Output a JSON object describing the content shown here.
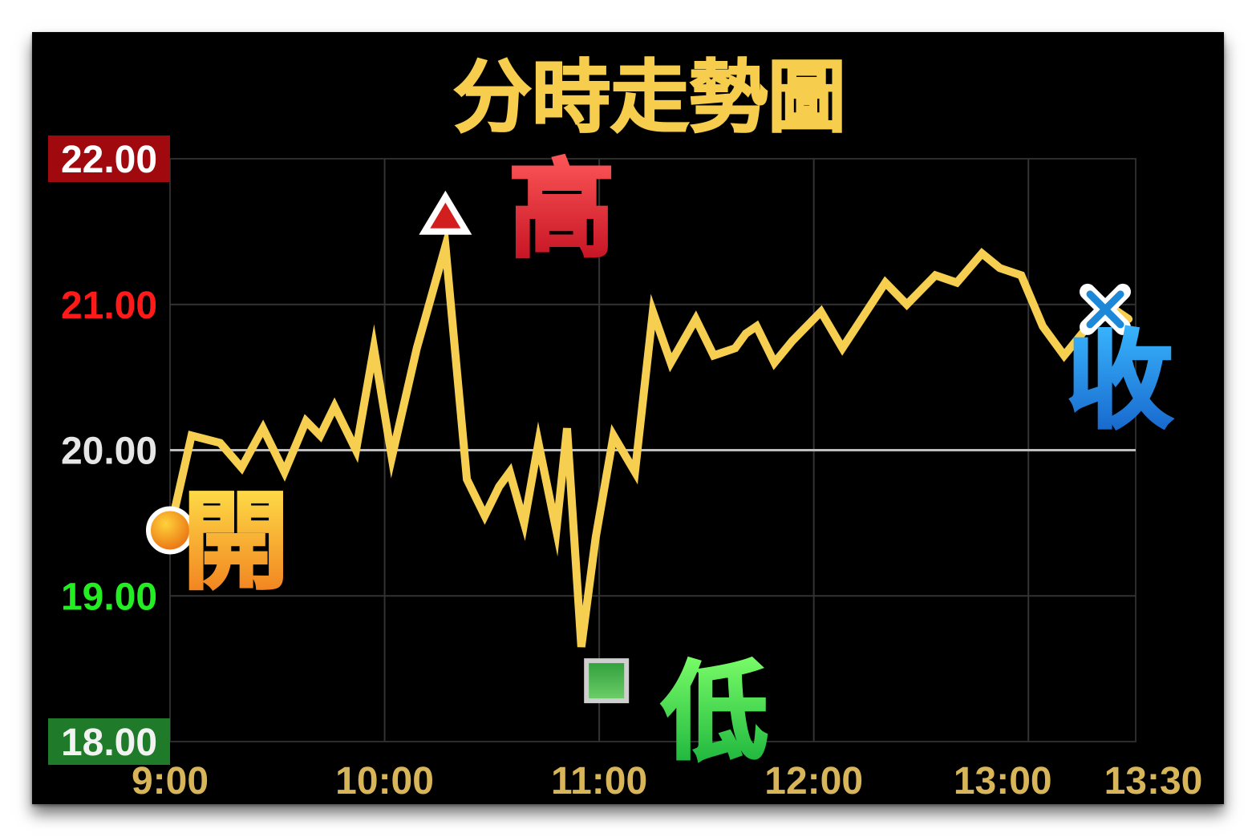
{
  "chart_data": {
    "type": "line",
    "title": "分時走勢圖",
    "x_ticks": [
      "9:00",
      "10:00",
      "11:00",
      "12:00",
      "13:00",
      "13:30"
    ],
    "y_ticks": [
      {
        "label": "22.00",
        "value": 22,
        "color": "#ffffff",
        "bg": "#a0090d"
      },
      {
        "label": "21.00",
        "value": 21,
        "color": "#ff1a1a",
        "bg": ""
      },
      {
        "label": "20.00",
        "value": 20,
        "color": "#e6e6e6",
        "bg": ""
      },
      {
        "label": "19.00",
        "value": 19,
        "color": "#22ee22",
        "bg": ""
      },
      {
        "label": "18.00",
        "value": 18,
        "color": "#f2f2f2",
        "bg": "#1f7a2a"
      }
    ],
    "ylim": [
      18,
      22
    ],
    "xlim_minutes": [
      0,
      270
    ],
    "reference_value": 20.0,
    "series": [
      {
        "color": "#f7cf50",
        "t": [
          0,
          6,
          14,
          20,
          26,
          32,
          38,
          42,
          46,
          52,
          57,
          62,
          69,
          77,
          83,
          88,
          92,
          95,
          99,
          103,
          108,
          111,
          115,
          119,
          124,
          130,
          135,
          140,
          147,
          152,
          158,
          161,
          164,
          169,
          174,
          182,
          188,
          200,
          206,
          214,
          220,
          227,
          232,
          238,
          244,
          250,
          255,
          258,
          260,
          265,
          268
        ],
        "price": [
          19.45,
          20.1,
          20.05,
          19.88,
          20.15,
          19.85,
          20.2,
          20.1,
          20.3,
          20.0,
          20.7,
          19.95,
          20.7,
          21.4,
          19.8,
          19.55,
          19.75,
          19.85,
          19.5,
          20.05,
          19.45,
          20.15,
          18.65,
          19.4,
          20.1,
          19.85,
          20.95,
          20.6,
          20.9,
          20.65,
          20.7,
          20.8,
          20.85,
          20.6,
          20.75,
          20.95,
          20.7,
          21.15,
          21.0,
          21.2,
          21.15,
          21.35,
          21.25,
          21.2,
          20.85,
          20.65,
          20.8,
          20.9,
          20.9,
          20.95,
          20.9
        ]
      }
    ],
    "annotations": [
      {
        "label": "開",
        "kind": "open",
        "t": 0,
        "price": 19.45,
        "marker_color": "#f59a1a"
      },
      {
        "label": "高",
        "kind": "high",
        "t": 77,
        "price": 21.55,
        "marker_color": "#d21e1e"
      },
      {
        "label": "低",
        "kind": "low",
        "t": 118,
        "price": 18.5,
        "marker_color": "#3fae44"
      },
      {
        "label": "收",
        "kind": "close",
        "t": 270,
        "price": 20.9,
        "marker_color": "#1e88d8"
      }
    ],
    "grid": true,
    "title_color": "#f6cd4c",
    "x_tick_color": "#d8b558"
  }
}
